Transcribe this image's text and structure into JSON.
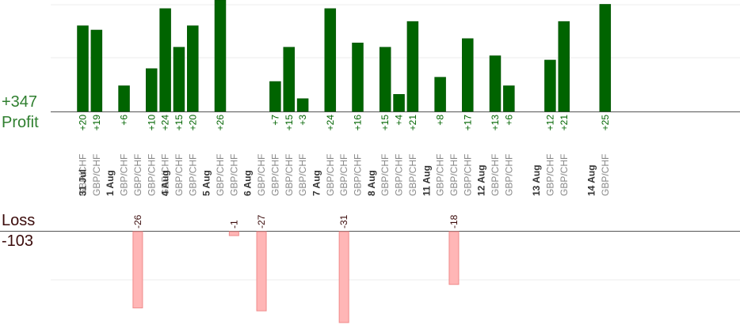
{
  "summary": {
    "profit_total": "+347",
    "profit_label": "Profit",
    "loss_label": "Loss",
    "loss_total": "-103"
  },
  "chart_data": {
    "type": "bar",
    "grid": true,
    "colors": {
      "profit": "#006400",
      "loss": "#ffb6b6",
      "profit_text": "#006400",
      "loss_text": "#3a0a0a",
      "instrument_text": "#888888",
      "date_text": "#333333"
    },
    "profit_ylim": [
      0,
      26
    ],
    "loss_ylim": [
      -31,
      0
    ],
    "dates": [
      {
        "label": "31 Jul",
        "col": 0
      },
      {
        "label": "1 Aug",
        "col": 2
      },
      {
        "label": "4 Aug",
        "col": 6
      },
      {
        "label": "5 Aug",
        "col": 9
      },
      {
        "label": "6 Aug",
        "col": 12
      },
      {
        "label": "7 Aug",
        "col": 17
      },
      {
        "label": "8 Aug",
        "col": 21
      },
      {
        "label": "11 Aug",
        "col": 25
      },
      {
        "label": "12 Aug",
        "col": 29
      },
      {
        "label": "13 Aug",
        "col": 33
      },
      {
        "label": "14 Aug",
        "col": 37
      }
    ],
    "trades": [
      {
        "instrument": "GBP/CHF",
        "value": 20,
        "label": "+20"
      },
      {
        "instrument": "GBP/CHF",
        "value": 19,
        "label": "+19"
      },
      {
        "instrument": "GBP/CHF",
        "value": 6,
        "label": "+6"
      },
      {
        "instrument": "GBP/CHF",
        "value": -26,
        "label": "-26"
      },
      {
        "instrument": "GBP/CHF",
        "value": 10,
        "label": "+10"
      },
      {
        "instrument": "GBP/CHF",
        "value": 24,
        "label": "+24"
      },
      {
        "instrument": "GBP/CHF",
        "value": 15,
        "label": "+15"
      },
      {
        "instrument": "GBP/CHF",
        "value": 20,
        "label": "+20"
      },
      {
        "instrument": "GBP/CHF",
        "value": 26,
        "label": "+26"
      },
      {
        "instrument": "GBP/CHF",
        "value": -1,
        "label": "-1"
      },
      {
        "instrument": "GBP/CHF",
        "value": -27,
        "label": "-27"
      },
      {
        "instrument": "GBP/CHF",
        "value": 7,
        "label": "+7"
      },
      {
        "instrument": "GBP/CHF",
        "value": 15,
        "label": "+15"
      },
      {
        "instrument": "GBP/CHF",
        "value": 3,
        "label": "+3"
      },
      {
        "instrument": "GBP/CHF",
        "value": 24,
        "label": "+24"
      },
      {
        "instrument": "GBP/CHF",
        "value": -31,
        "label": "-31"
      },
      {
        "instrument": "GBP/CHF",
        "value": 16,
        "label": "+16"
      },
      {
        "instrument": "GBP/CHF",
        "value": 15,
        "label": "+15"
      },
      {
        "instrument": "GBP/CHF",
        "value": 4,
        "label": "+4"
      },
      {
        "instrument": "GBP/CHF",
        "value": 21,
        "label": "+21"
      },
      {
        "instrument": "GBP/CHF",
        "value": 8,
        "label": "+8"
      },
      {
        "instrument": "GBP/CHF",
        "value": -18,
        "label": "-18"
      },
      {
        "instrument": "GBP/CHF",
        "value": 17,
        "label": "+17"
      },
      {
        "instrument": "GBP/CHF",
        "value": 13,
        "label": "+13"
      },
      {
        "instrument": "GBP/CHF",
        "value": 6,
        "label": "+6"
      },
      {
        "instrument": "GBP/CHF",
        "value": 12,
        "label": "+12"
      },
      {
        "instrument": "GBP/CHF",
        "value": 21,
        "label": "+21"
      },
      {
        "instrument": "GBP/CHF",
        "value": 25,
        "label": "+25"
      }
    ],
    "columns": [
      0,
      1,
      3,
      4,
      5,
      6,
      7,
      8,
      10,
      11,
      13,
      14,
      15,
      16,
      18,
      19,
      20,
      22,
      23,
      24,
      26,
      27,
      28,
      30,
      31,
      34,
      35,
      38
    ]
  }
}
